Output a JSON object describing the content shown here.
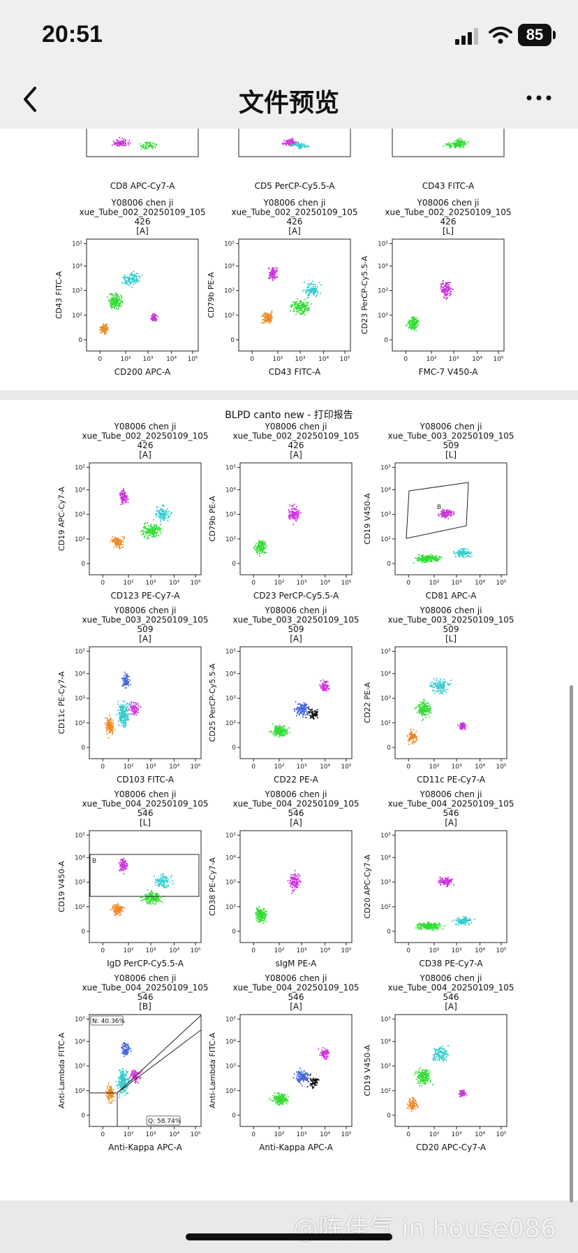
{
  "status_bar": {
    "time": "20:51",
    "battery": "85"
  },
  "nav": {
    "title": "文件预览"
  },
  "page1": {
    "top_axis_labels": [
      "CD8 APC-Cy7-A",
      "CD5 PerCP-Cy5.5-A",
      "CD43 FITC-A"
    ],
    "headers": [
      {
        "l1": "Y08006 chen ji",
        "l2": "xue_Tube_002_20250109_105",
        "l3": "426",
        "l4": "[A]"
      },
      {
        "l1": "Y08006 chen ji",
        "l2": "xue_Tube_002_20250109_105",
        "l3": "426",
        "l4": "[A]"
      },
      {
        "l1": "Y08006 chen ji",
        "l2": "xue_Tube_002_20250109_105",
        "l3": "426",
        "l4": "[L]"
      }
    ],
    "plots": [
      {
        "x": "CD200 APC-A",
        "y": "CD43 FITC-A"
      },
      {
        "x": "CD43 FITC-A",
        "y": "CD79b PE-A"
      },
      {
        "x": "FMC-7 V450-A",
        "y": "CD23 PerCP-Cy5.5-A"
      }
    ]
  },
  "page2": {
    "report_title": "BLPD canto new - 打印报告",
    "rows": [
      [
        {
          "l1": "Y08006 chen ji",
          "l2": "xue_Tube_002_20250109_105",
          "l3": "426",
          "l4": "[A]",
          "x": "CD123 PE-Cy7-A",
          "y": "CD19 APC-Cy7-A"
        },
        {
          "l1": "Y08006 chen ji",
          "l2": "xue_Tube_002_20250109_105",
          "l3": "426",
          "l4": "[A]",
          "x": "CD23 PerCP-Cy5.5-A",
          "y": "CD79b PE-A"
        },
        {
          "l1": "Y08006 chen ji",
          "l2": "xue_Tube_003_20250109_105",
          "l3": "509",
          "l4": "[L]",
          "x": "CD81 APC-A",
          "y": "CD19 V450-A",
          "gate": "B"
        }
      ],
      [
        {
          "l1": "Y08006 chen ji",
          "l2": "xue_Tube_003_20250109_105",
          "l3": "509",
          "l4": "[A]",
          "x": "CD103 FITC-A",
          "y": "CD11c PE-Cy7-A"
        },
        {
          "l1": "Y08006 chen ji",
          "l2": "xue_Tube_003_20250109_105",
          "l3": "509",
          "l4": "[A]",
          "x": "CD22 PE-A",
          "y": "CD25 PerCP-Cy5.5-A"
        },
        {
          "l1": "Y08006 chen ji",
          "l2": "xue_Tube_003_20250109_105",
          "l3": "509",
          "l4": "[L]",
          "x": "CD11c PE-Cy7-A",
          "y": "CD22 PE-A"
        }
      ],
      [
        {
          "l1": "Y08006 chen ji",
          "l2": "xue_Tube_004_20250109_105",
          "l3": "546",
          "l4": "[L]",
          "x": "IgD PerCP-Cy5.5-A",
          "y": "CD19 V450-A",
          "gate": "B"
        },
        {
          "l1": "Y08006 chen ji",
          "l2": "xue_Tube_004_20250109_105",
          "l3": "546",
          "l4": "[A]",
          "x": "sIgM PE-A",
          "y": "CD38 PE-Cy7-A"
        },
        {
          "l1": "Y08006 chen ji",
          "l2": "xue_Tube_004_20250109_105",
          "l3": "546",
          "l4": "[A]",
          "x": "CD38 PE-Cy7-A",
          "y": "CD20 APC-Cy7-A"
        }
      ],
      [
        {
          "l1": "Y08006 chen ji",
          "l2": "xue_Tube_004_20250109_105",
          "l3": "546",
          "l4": "[B]",
          "x": "Anti-Kappa APC-A",
          "y": "Anti-Lambda FITC-A",
          "gate_n": "N: 40.36%",
          "gate_q": "Q: 58.74%"
        },
        {
          "l1": "Y08006 chen ji",
          "l2": "xue_Tube_004_20250109_105",
          "l3": "546",
          "l4": "[A]",
          "x": "Anti-Kappa APC-A",
          "y": "Anti-Lambda FITC-A"
        },
        {
          "l1": "Y08006 chen ji",
          "l2": "xue_Tube_004_20250109_105",
          "l3": "546",
          "l4": "[A]",
          "x": "CD20 APC-Cy7-A",
          "y": "CD19 V450-A"
        }
      ]
    ]
  },
  "tick_labels": [
    "0",
    "10²",
    "10³",
    "10⁴",
    "10⁵"
  ],
  "colors": {
    "magenta": "#cc33dd",
    "green": "#33dd33",
    "cyan": "#33cccc",
    "orange": "#ee8822",
    "black": "#111111",
    "blue": "#4466dd",
    "pink": "#dd99dd"
  },
  "watermark": "@陈佳气 in house086"
}
